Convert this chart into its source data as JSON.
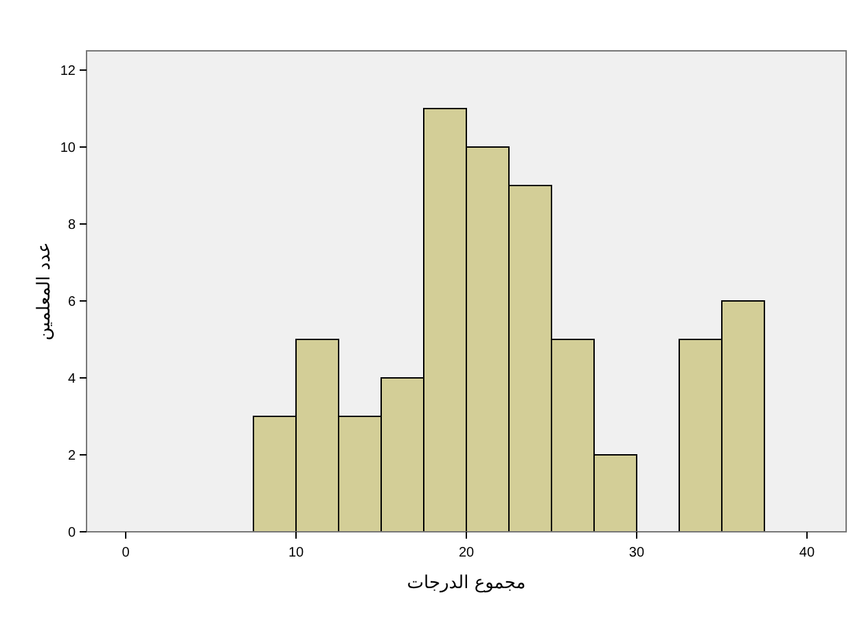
{
  "chart_data": {
    "type": "histogram",
    "xlabel": "مجموع الدرجات",
    "ylabel": "عدد المعلمين",
    "bins": [
      7.5,
      10,
      12.5,
      15,
      17.5,
      20,
      22.5,
      25,
      27.5,
      30,
      32.5,
      35,
      37.5
    ],
    "values": [
      3,
      5,
      3,
      4,
      11,
      10,
      9,
      5,
      2,
      0,
      5,
      6
    ],
    "color": "#d3ce97",
    "xlim": [
      -2.3,
      42.3
    ],
    "ylim": [
      0,
      12.5
    ],
    "xticks": [
      0,
      10,
      20,
      30,
      40
    ],
    "yticks": [
      0,
      2,
      4,
      6,
      8,
      10,
      12
    ],
    "grid": false
  }
}
